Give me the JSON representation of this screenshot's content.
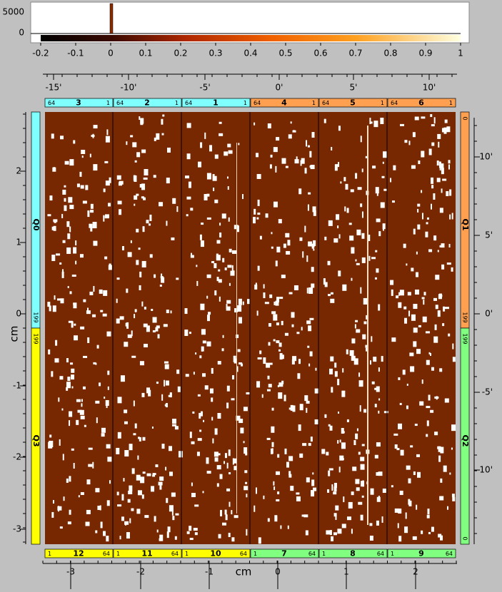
{
  "histogram": {
    "y_ticks": [
      "5000",
      "0"
    ]
  },
  "colorbar": {
    "ticks": [
      "-0.2",
      "-0.1",
      "0",
      "0.1",
      "0.2",
      "0.3",
      "0.4",
      "0.5",
      "0.6",
      "0.7",
      "0.8",
      "0.9",
      "1"
    ]
  },
  "top_axis": {
    "ticks": [
      "-15'",
      "-10'",
      "-5'",
      "0'",
      "5'",
      "10'"
    ]
  },
  "modules_top": [
    {
      "left": "64",
      "id": "3",
      "right": "1"
    },
    {
      "left": "64",
      "id": "2",
      "right": "1"
    },
    {
      "left": "64",
      "id": "1",
      "right": "1"
    },
    {
      "left": "64",
      "id": "4",
      "right": "1"
    },
    {
      "left": "64",
      "id": "5",
      "right": "1"
    },
    {
      "left": "64",
      "id": "6",
      "right": "1"
    }
  ],
  "modules_bottom": [
    {
      "left": "1",
      "id": "12",
      "right": "64"
    },
    {
      "left": "1",
      "id": "11",
      "right": "64"
    },
    {
      "left": "1",
      "id": "10",
      "right": "64"
    },
    {
      "left": "1",
      "id": "7",
      "right": "64"
    },
    {
      "left": "1",
      "id": "8",
      "right": "64"
    },
    {
      "left": "1",
      "id": "9",
      "right": "64"
    }
  ],
  "quadrants": [
    {
      "label": "Q0",
      "edge": "199"
    },
    {
      "label": "Q3",
      "edge": "199"
    },
    {
      "label": "Q1",
      "start": "0",
      "edge": "199"
    },
    {
      "label": "Q2",
      "edge": "199",
      "end": "0"
    }
  ],
  "left_axis": {
    "title": "cm",
    "ticks": [
      "2",
      "1",
      "0",
      "-1",
      "-2",
      "-3"
    ]
  },
  "right_axis": {
    "ticks": [
      "10'",
      "5'",
      "0'",
      "-5'",
      "-10'"
    ]
  },
  "bottom_axis": {
    "title": "cm",
    "ticks": [
      "-3",
      "-2",
      "-1",
      "0",
      "1",
      "2"
    ]
  }
}
